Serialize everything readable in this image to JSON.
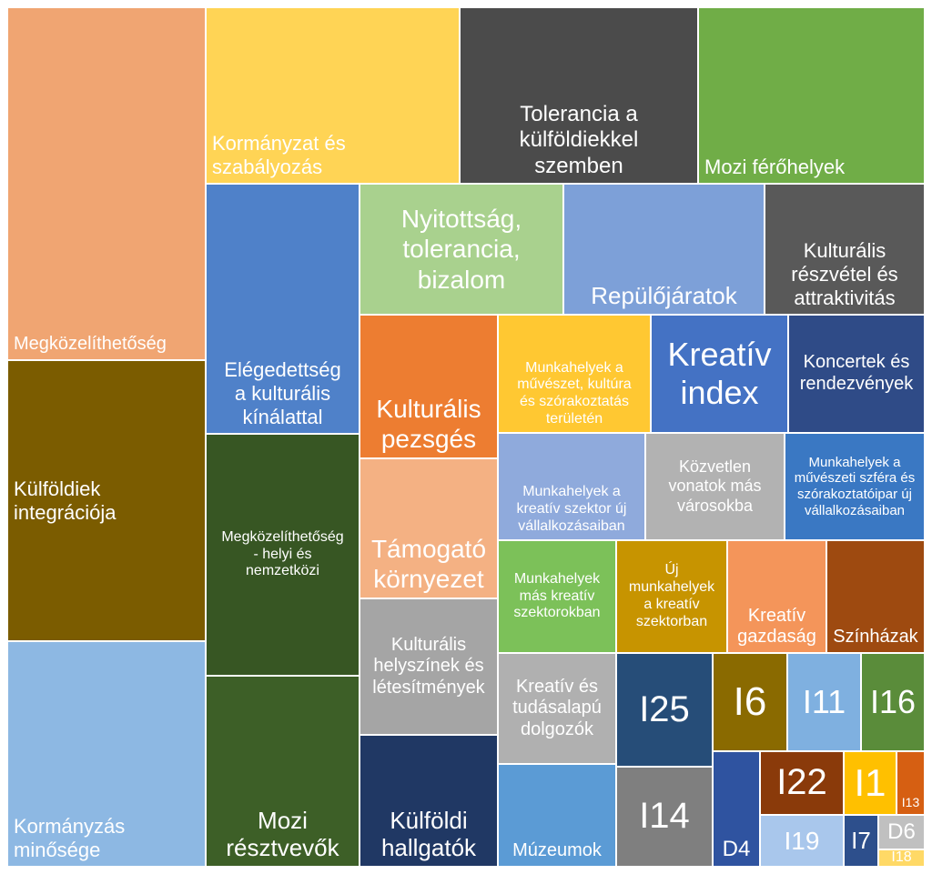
{
  "chart_data": {
    "type": "treemap",
    "title": "",
    "items": [
      {
        "label": "Megközelíthetőség",
        "color": "#f0a572"
      },
      {
        "label": "Külföldiek\nintegrációja",
        "color": "#7b5c00"
      },
      {
        "label": "Kormányzás\nminősége",
        "color": "#8db8e3"
      },
      {
        "label": "Kormányzat és\nszabályozás",
        "color": "#ffd455"
      },
      {
        "label": "Tolerancia a\nkülföldiekkel\nszemben",
        "color": "#4b4b4b"
      },
      {
        "label": "Mozi férőhelyek",
        "color": "#70ad47"
      },
      {
        "label": "Elégedettség\na kulturális\nkínálattal",
        "color": "#4f81c9"
      },
      {
        "label": "Megközelíthetőség\n- helyi és\nnemzetközi",
        "color": "#375623"
      },
      {
        "label": "Mozi\nrésztvevők",
        "color": "#3d5f27"
      },
      {
        "label": "Nyitottság,\ntolerancia,\nbizalom",
        "color": "#a9d18e"
      },
      {
        "label": "Repülőjáratok",
        "color": "#7da0d8"
      },
      {
        "label": "Kulturális\nrészvétel és\nattraktivitás",
        "color": "#595959"
      },
      {
        "label": "Kulturális\npezsgés",
        "color": "#ed7d31"
      },
      {
        "label": "Támogató\nkörnyezet",
        "color": "#f4b183"
      },
      {
        "label": "Kulturális\nhelyszínek és\nlétesítmények",
        "color": "#a5a5a5"
      },
      {
        "label": "Külföldi\nhallgatók",
        "color": "#203864"
      },
      {
        "label": "Munkahelyek a\nművészet, kultúra\nés szórakoztatás\nterületén",
        "color": "#ffc832"
      },
      {
        "label": "Kreatív\nindex",
        "color": "#4472c4"
      },
      {
        "label": "Koncertek és\nrendezvények",
        "color": "#2f4b87"
      },
      {
        "label": "Munkahelyek a\nkreatív szektor új\nvállalkozásaiban",
        "color": "#8faadc"
      },
      {
        "label": "Közvetlen\nvonatok más\nvárosokba",
        "color": "#b2b2b2"
      },
      {
        "label": "Munkahelyek a\nművészeti szféra és\nszórakoztatóipar új\nvállalkozásaiban",
        "color": "#3a78c3"
      },
      {
        "label": "Munkahelyek\nmás kreatív\nszektorokban",
        "color": "#7cc159"
      },
      {
        "label": "Új\nmunkahelyek\na kreatív\nszektorban",
        "color": "#c79400"
      },
      {
        "label": "Kreatív\ngazdaság",
        "color": "#f4955a"
      },
      {
        "label": "Színházak",
        "color": "#9e4a10"
      },
      {
        "label": "Kreatív és\ntudásalapú\ndolgozók",
        "color": "#b0b0b0"
      },
      {
        "label": "Múzeumok",
        "color": "#5b9bd5"
      },
      {
        "label": "I25",
        "color": "#264d78"
      },
      {
        "label": "I14",
        "color": "#7f7f7f"
      },
      {
        "label": "I6",
        "color": "#8a6a00"
      },
      {
        "label": "I11",
        "color": "#7fb0e0"
      },
      {
        "label": "I16",
        "color": "#5a8c3a"
      },
      {
        "label": "I22",
        "color": "#8a3a0a"
      },
      {
        "label": "I1",
        "color": "#ffc000"
      },
      {
        "label": "I13",
        "color": "#d65f12"
      },
      {
        "label": "D4",
        "color": "#2f53a0"
      },
      {
        "label": "I19",
        "color": "#a9c7ec"
      },
      {
        "label": "I7",
        "color": "#2d4f8c"
      },
      {
        "label": "D6",
        "color": "#c0c0c0"
      },
      {
        "label": "I18",
        "color": "#ffd966"
      }
    ]
  }
}
